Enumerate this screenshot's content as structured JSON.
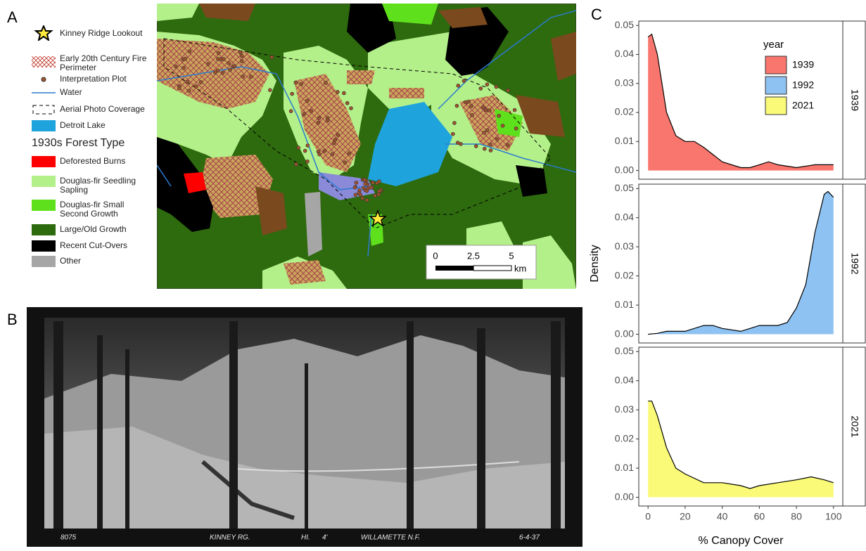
{
  "panel_labels": [
    "A",
    "B",
    "C"
  ],
  "map": {
    "legend": [
      {
        "label": "Kinney Ridge Lookout"
      },
      {
        "label": "Early 20th Century Fire Perimeter"
      },
      {
        "label": "Interpretation Plot"
      },
      {
        "label": "Water"
      },
      {
        "label": "Aerial Photo Coverage"
      },
      {
        "label": "Detroit Lake"
      }
    ],
    "legend_heading": "1930s Forest Type",
    "forest_types": [
      {
        "label": "Deforested Burns",
        "color": "#ff0000"
      },
      {
        "label": "Douglas-fir Seedling Sapling",
        "color": "#b4f08a"
      },
      {
        "label": "Douglas-fir Small Second Growth",
        "color": "#5ee01c"
      },
      {
        "label": "Large/Old Growth",
        "color": "#2e6a0e"
      },
      {
        "label": "Recent Cut-Overs",
        "color": "#000000"
      },
      {
        "label": "Other",
        "color": "#a6a6a6"
      }
    ],
    "scale": {
      "ticks": [
        "0",
        "2.5",
        "5"
      ],
      "unit": "km"
    }
  },
  "photo": {
    "captions": [
      "8075",
      "KINNEY RG.",
      "HI.",
      "4'",
      "WILLAMETTE N.F.",
      "6-4-37"
    ]
  },
  "chart_data": [
    {
      "type": "area",
      "strip": "1939",
      "legend_title": "year",
      "x": [
        0,
        2,
        5,
        10,
        15,
        20,
        25,
        30,
        40,
        50,
        55,
        60,
        65,
        70,
        80,
        90,
        100
      ],
      "series": [
        {
          "name": "1939",
          "color": "#f8766d",
          "values": [
            0.046,
            0.047,
            0.04,
            0.02,
            0.012,
            0.01,
            0.01,
            0.008,
            0.003,
            0.001,
            0.001,
            0.002,
            0.003,
            0.002,
            0.001,
            0.002,
            0.002
          ]
        }
      ],
      "xlim": [
        -5,
        105
      ],
      "ylim": [
        -0.003,
        0.0515
      ],
      "yticks": [
        {
          "value": 0,
          "label": "0.00"
        },
        0.01,
        0.02,
        0.03,
        0.04,
        0.05
      ]
    },
    {
      "type": "area",
      "strip": "1992",
      "ylabel": "Density",
      "x": [
        0,
        5,
        10,
        20,
        30,
        35,
        40,
        50,
        55,
        60,
        70,
        75,
        80,
        85,
        90,
        95,
        97,
        100
      ],
      "series": [
        {
          "name": "1992",
          "color": "#8ec2f2",
          "values": [
            0,
            0.0003,
            0.001,
            0.001,
            0.003,
            0.003,
            0.002,
            0.001,
            0.002,
            0.003,
            0.003,
            0.004,
            0.009,
            0.017,
            0.035,
            0.048,
            0.049,
            0.047
          ]
        }
      ],
      "xlim": [
        -5,
        105
      ],
      "ylim": [
        -0.003,
        0.0515
      ],
      "yticks": [
        {
          "value": 0,
          "label": "0.00"
        },
        0.01,
        0.02,
        0.03,
        0.04,
        0.05
      ]
    },
    {
      "type": "area",
      "strip": "2021",
      "xlabel": "% Canopy Cover",
      "x": [
        0,
        2,
        5,
        10,
        15,
        20,
        30,
        40,
        50,
        55,
        60,
        70,
        80,
        88,
        95,
        100
      ],
      "series": [
        {
          "name": "2021",
          "color": "#fafa78",
          "values": [
            0.033,
            0.033,
            0.028,
            0.017,
            0.01,
            0.008,
            0.005,
            0.005,
            0.004,
            0.003,
            0.004,
            0.005,
            0.006,
            0.007,
            0.006,
            0.005
          ]
        }
      ],
      "xlim": [
        -5,
        105
      ],
      "ylim": [
        -0.003,
        0.0515
      ],
      "yticks": [
        {
          "value": 0,
          "label": "0.00"
        },
        0.01,
        0.02,
        0.03,
        0.04,
        0.05
      ],
      "xticks": [
        0,
        20,
        40,
        60,
        80,
        100
      ]
    }
  ]
}
